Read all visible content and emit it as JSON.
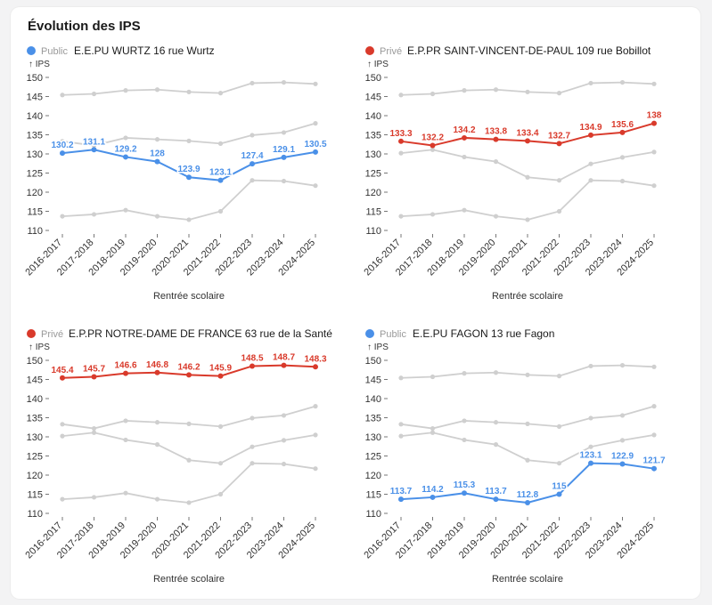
{
  "title": "Évolution des IPS",
  "colors": {
    "public": "#4a90e8",
    "prive": "#d93a2b",
    "other": "#cfcfcf"
  },
  "chart_data": [
    {
      "type": "line",
      "kind": "Public",
      "school": "E.E.PU WURTZ 16 rue Wurtz",
      "ylabel": "↑ IPS",
      "xlabel": "Rentrée scolaire",
      "ylim": [
        110,
        150
      ],
      "yticks": [
        "110",
        "115",
        "120",
        "125",
        "130",
        "135",
        "140",
        "145",
        "150"
      ],
      "categories": [
        "2016-2017",
        "2017-2018",
        "2018-2019",
        "2019-2020",
        "2020-2021",
        "2021-2022",
        "2022-2023",
        "2023-2024",
        "2024-2025"
      ],
      "values": [
        130.2,
        131.1,
        129.2,
        128,
        123.9,
        123.1,
        127.4,
        129.1,
        130.5
      ],
      "labels": [
        "130.2",
        "131.1",
        "129.2",
        "128",
        "123.9",
        "123.1",
        "127.4",
        "129.1",
        "130.5"
      ],
      "others": [
        [
          145.4,
          145.7,
          146.6,
          146.8,
          146.2,
          145.9,
          148.5,
          148.7,
          148.3
        ],
        [
          133.3,
          132.2,
          134.2,
          133.8,
          133.4,
          132.7,
          134.9,
          135.6,
          138
        ],
        [
          113.7,
          114.2,
          115.3,
          113.7,
          112.8,
          115,
          123.1,
          122.9,
          121.7
        ]
      ]
    },
    {
      "type": "line",
      "kind": "Privé",
      "school": "E.P.PR SAINT-VINCENT-DE-PAUL 109 rue Bobillot",
      "ylabel": "↑ IPS",
      "xlabel": "Rentrée scolaire",
      "ylim": [
        110,
        150
      ],
      "yticks": [
        "110",
        "115",
        "120",
        "125",
        "130",
        "135",
        "140",
        "145",
        "150"
      ],
      "categories": [
        "2016-2017",
        "2017-2018",
        "2018-2019",
        "2019-2020",
        "2020-2021",
        "2021-2022",
        "2022-2023",
        "2023-2024",
        "2024-2025"
      ],
      "values": [
        133.3,
        132.2,
        134.2,
        133.8,
        133.4,
        132.7,
        134.9,
        135.6,
        138
      ],
      "labels": [
        "133.3",
        "132.2",
        "134.2",
        "133.8",
        "133.4",
        "132.7",
        "134.9",
        "135.6",
        "138"
      ],
      "others": [
        [
          145.4,
          145.7,
          146.6,
          146.8,
          146.2,
          145.9,
          148.5,
          148.7,
          148.3
        ],
        [
          130.2,
          131.1,
          129.2,
          128,
          123.9,
          123.1,
          127.4,
          129.1,
          130.5
        ],
        [
          113.7,
          114.2,
          115.3,
          113.7,
          112.8,
          115,
          123.1,
          122.9,
          121.7
        ]
      ]
    },
    {
      "type": "line",
      "kind": "Privé",
      "school": "E.P.PR NOTRE-DAME DE FRANCE 63 rue de la Santé",
      "ylabel": "↑ IPS",
      "xlabel": "Rentrée scolaire",
      "ylim": [
        110,
        150
      ],
      "yticks": [
        "110",
        "115",
        "120",
        "125",
        "130",
        "135",
        "140",
        "145",
        "150"
      ],
      "categories": [
        "2016-2017",
        "2017-2018",
        "2018-2019",
        "2019-2020",
        "2020-2021",
        "2021-2022",
        "2022-2023",
        "2023-2024",
        "2024-2025"
      ],
      "values": [
        145.4,
        145.7,
        146.6,
        146.8,
        146.2,
        145.9,
        148.5,
        148.7,
        148.3
      ],
      "labels": [
        "145.4",
        "145.7",
        "146.6",
        "146.8",
        "146.2",
        "145.9",
        "148.5",
        "148.7",
        "148.3"
      ],
      "others": [
        [
          133.3,
          132.2,
          134.2,
          133.8,
          133.4,
          132.7,
          134.9,
          135.6,
          138
        ],
        [
          130.2,
          131.1,
          129.2,
          128,
          123.9,
          123.1,
          127.4,
          129.1,
          130.5
        ],
        [
          113.7,
          114.2,
          115.3,
          113.7,
          112.8,
          115,
          123.1,
          122.9,
          121.7
        ]
      ]
    },
    {
      "type": "line",
      "kind": "Public",
      "school": "E.E.PU FAGON 13 rue Fagon",
      "ylabel": "↑ IPS",
      "xlabel": "Rentrée scolaire",
      "ylim": [
        110,
        150
      ],
      "yticks": [
        "110",
        "115",
        "120",
        "125",
        "130",
        "135",
        "140",
        "145",
        "150"
      ],
      "categories": [
        "2016-2017",
        "2017-2018",
        "2018-2019",
        "2019-2020",
        "2020-2021",
        "2021-2022",
        "2022-2023",
        "2023-2024",
        "2024-2025"
      ],
      "values": [
        113.7,
        114.2,
        115.3,
        113.7,
        112.8,
        115,
        123.1,
        122.9,
        121.7
      ],
      "labels": [
        "113.7",
        "114.2",
        "115.3",
        "113.7",
        "112.8",
        "115",
        "123.1",
        "122.9",
        "121.7"
      ],
      "others": [
        [
          145.4,
          145.7,
          146.6,
          146.8,
          146.2,
          145.9,
          148.5,
          148.7,
          148.3
        ],
        [
          133.3,
          132.2,
          134.2,
          133.8,
          133.4,
          132.7,
          134.9,
          135.6,
          138
        ],
        [
          130.2,
          131.1,
          129.2,
          128,
          123.9,
          123.1,
          127.4,
          129.1,
          130.5
        ]
      ]
    }
  ]
}
